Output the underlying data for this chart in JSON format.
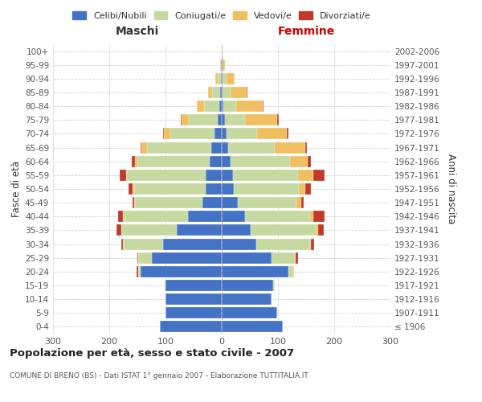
{
  "age_groups": [
    "0-4",
    "5-9",
    "10-14",
    "15-19",
    "20-24",
    "25-29",
    "30-34",
    "35-39",
    "40-44",
    "45-49",
    "50-54",
    "55-59",
    "60-64",
    "65-69",
    "70-74",
    "75-79",
    "80-84",
    "85-89",
    "90-94",
    "95-99",
    "100+"
  ],
  "birth_years": [
    "2002-2006",
    "1997-2001",
    "1992-1996",
    "1987-1991",
    "1982-1986",
    "1977-1981",
    "1972-1976",
    "1967-1971",
    "1962-1966",
    "1957-1961",
    "1952-1956",
    "1947-1951",
    "1942-1946",
    "1937-1941",
    "1932-1936",
    "1927-1931",
    "1922-1926",
    "1917-1921",
    "1912-1916",
    "1907-1911",
    "≤ 1906"
  ],
  "maschi_celibi": [
    110,
    100,
    100,
    100,
    145,
    125,
    105,
    80,
    60,
    35,
    28,
    28,
    22,
    18,
    13,
    7,
    4,
    3,
    2,
    1,
    0
  ],
  "maschi_coniugati": [
    0,
    0,
    0,
    1,
    4,
    22,
    70,
    98,
    115,
    120,
    128,
    140,
    128,
    115,
    78,
    52,
    28,
    14,
    5,
    1,
    0
  ],
  "maschi_vedovi": [
    0,
    0,
    0,
    0,
    0,
    1,
    1,
    1,
    1,
    1,
    2,
    2,
    5,
    10,
    12,
    12,
    12,
    8,
    4,
    1,
    0
  ],
  "maschi_divorziati": [
    0,
    0,
    0,
    0,
    2,
    2,
    2,
    8,
    8,
    3,
    8,
    12,
    5,
    2,
    2,
    2,
    0,
    0,
    0,
    0,
    0
  ],
  "femmine_nubili": [
    108,
    98,
    88,
    92,
    118,
    88,
    62,
    52,
    42,
    28,
    22,
    20,
    16,
    12,
    8,
    5,
    3,
    2,
    2,
    1,
    0
  ],
  "femmine_coniugate": [
    0,
    0,
    0,
    2,
    8,
    42,
    95,
    115,
    115,
    105,
    115,
    115,
    105,
    82,
    55,
    36,
    22,
    14,
    7,
    1,
    0
  ],
  "femmine_vedove": [
    0,
    0,
    0,
    0,
    2,
    2,
    2,
    4,
    6,
    8,
    12,
    28,
    32,
    55,
    52,
    58,
    48,
    28,
    14,
    3,
    1
  ],
  "femmine_divorziate": [
    0,
    0,
    0,
    0,
    1,
    3,
    5,
    10,
    20,
    5,
    10,
    20,
    5,
    3,
    3,
    3,
    1,
    1,
    0,
    0,
    0
  ],
  "colors_celibi": "#4472C4",
  "colors_coniugati": "#c5d9a0",
  "colors_vedovi": "#f0c060",
  "colors_divorziati": "#c0392b",
  "title": "Popolazione per età, sesso e stato civile - 2007",
  "subtitle": "COMUNE DI BRENO (BS) - Dati ISTAT 1° gennaio 2007 - Elaborazione TUTTITALIA.IT",
  "label_maschi": "Maschi",
  "label_femmine": "Femmine",
  "ylabel_left": "Fasce di età",
  "ylabel_right": "Anni di nascita",
  "legend_labels": [
    "Celibi/Nubili",
    "Coniugati/e",
    "Vedovi/e",
    "Divorziati/e"
  ],
  "xlim": 300
}
